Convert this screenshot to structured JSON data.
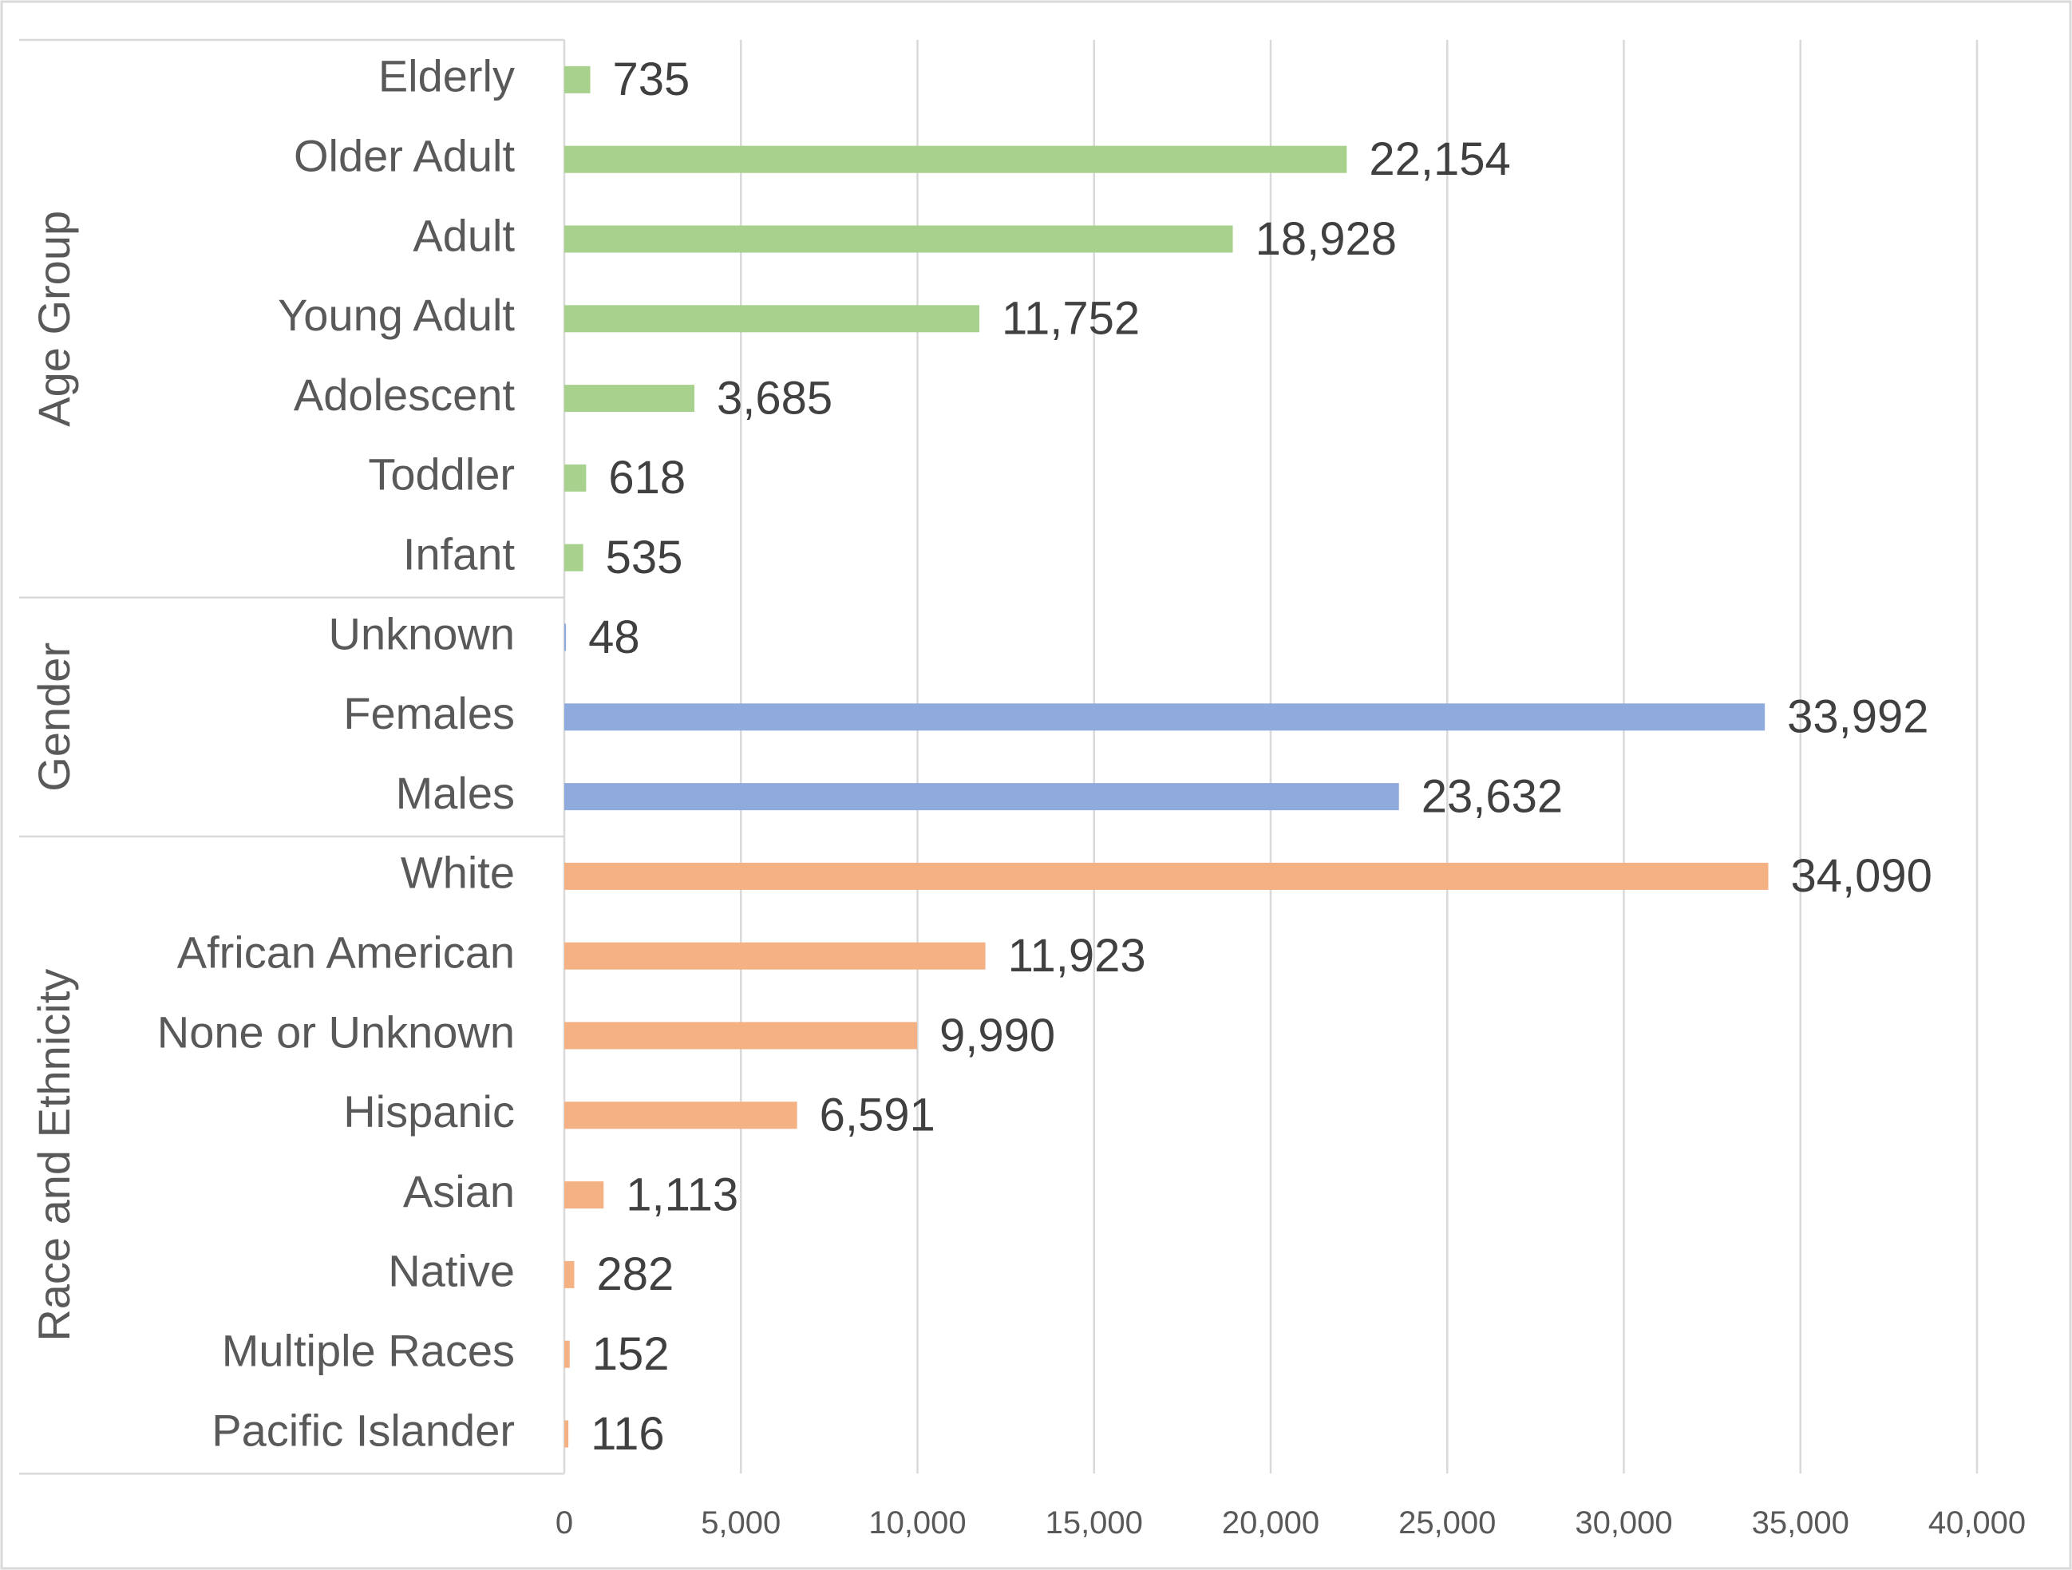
{
  "chart_data": {
    "type": "bar",
    "orientation": "horizontal",
    "xlim": [
      0,
      40000
    ],
    "x_ticks": [
      0,
      5000,
      10000,
      15000,
      20000,
      25000,
      30000,
      35000,
      40000
    ],
    "x_tick_labels": [
      "0",
      "5,000",
      "10,000",
      "15,000",
      "20,000",
      "25,000",
      "30,000",
      "35,000",
      "40,000"
    ],
    "grid": "vertical",
    "groups": [
      {
        "name": "Age Group",
        "color": "#A9D18E",
        "categories": [
          "Elderly",
          "Older Adult",
          "Adult",
          "Young Adult",
          "Adolescent",
          "Toddler",
          "Infant"
        ],
        "values": [
          735,
          22154,
          18928,
          11752,
          3685,
          618,
          535
        ],
        "labels": [
          "735",
          "22,154",
          "18,928",
          "11,752",
          "3,685",
          "618",
          "535"
        ]
      },
      {
        "name": "Gender",
        "color": "#8FAADC",
        "categories": [
          "Unknown",
          "Females",
          "Males"
        ],
        "values": [
          48,
          33992,
          23632
        ],
        "labels": [
          "48",
          "33,992",
          "23,632"
        ]
      },
      {
        "name": "Race and Ethnicity",
        "color": "#F4B183",
        "categories": [
          "White",
          "African American",
          "None or Unknown",
          "Hispanic",
          "Asian",
          "Native",
          "Multiple Races",
          "Pacific Islander"
        ],
        "values": [
          34090,
          11923,
          9990,
          6591,
          1113,
          282,
          152,
          116
        ],
        "labels": [
          "34,090",
          "11,923",
          "9,990",
          "6,591",
          "1,113",
          "282",
          "152",
          "116"
        ]
      }
    ]
  }
}
